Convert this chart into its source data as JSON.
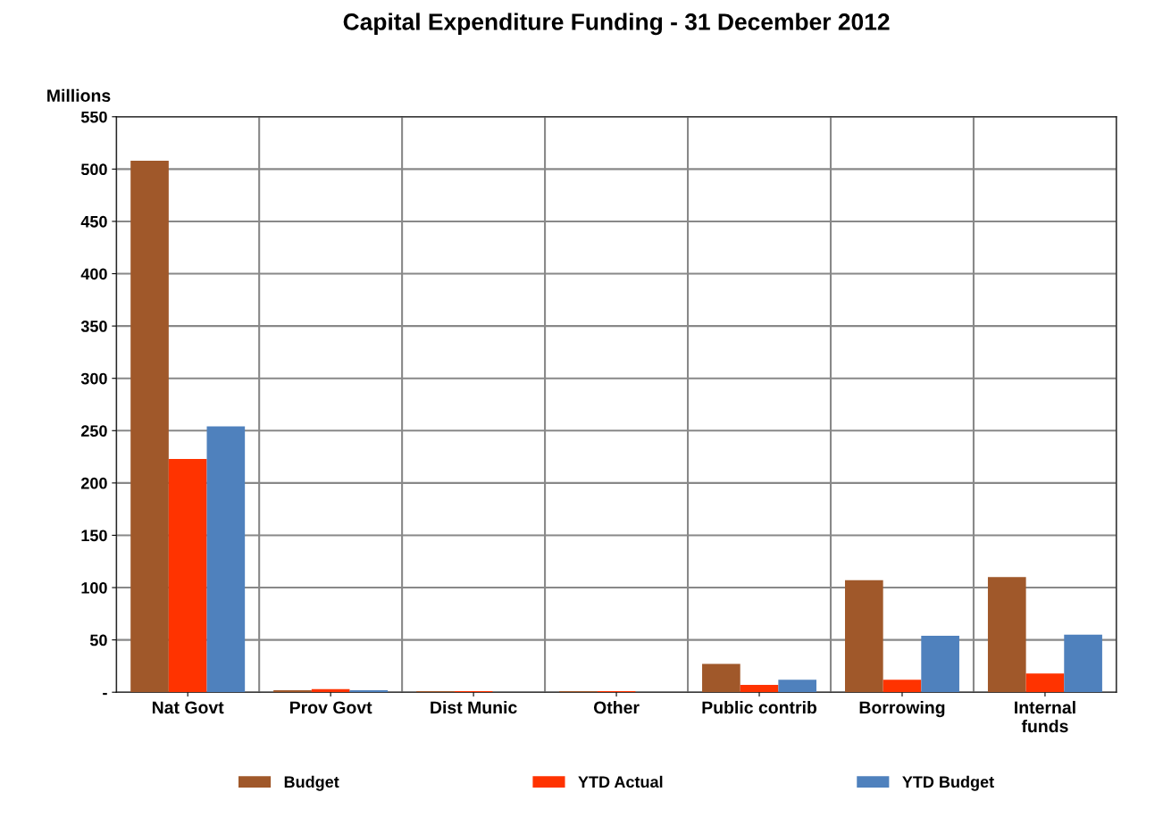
{
  "chart_data": {
    "type": "bar",
    "title": "Capital Expenditure Funding - 31 December 2012",
    "ylabel": "Millions",
    "categories": [
      "Nat Govt",
      "Prov Govt",
      "Dist Munic",
      "Other",
      "Public contrib",
      "Borrowing",
      "Internal\nfunds"
    ],
    "series": [
      {
        "name": "Budget",
        "color": "#a0582a",
        "values": [
          508,
          2,
          1,
          1,
          27,
          107,
          110
        ]
      },
      {
        "name": "YTD Actual",
        "color": "#ff3300",
        "values": [
          223,
          3,
          1,
          1,
          7,
          12,
          18
        ]
      },
      {
        "name": "YTD Budget",
        "color": "#4f81bd",
        "values": [
          254,
          2,
          0,
          0,
          12,
          54,
          55
        ]
      }
    ],
    "ylim": [
      0,
      550
    ],
    "yticks": [
      {
        "value": 0,
        "label": "-"
      },
      50,
      100,
      150,
      200,
      250,
      300,
      350,
      400,
      450,
      500,
      550
    ],
    "grid": true,
    "legend": "bottom"
  }
}
